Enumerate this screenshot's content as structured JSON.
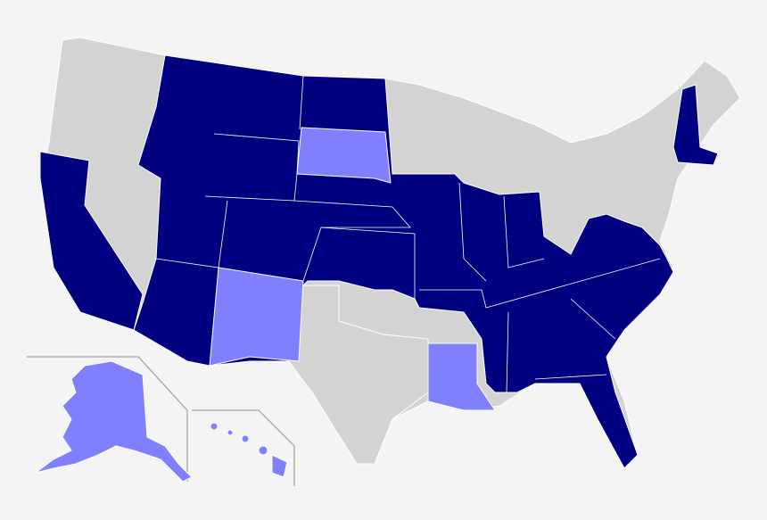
{
  "map": {
    "fills": [
      "#000080",
      "#8080ff",
      "#d3d3d3"
    ]
  }
}
